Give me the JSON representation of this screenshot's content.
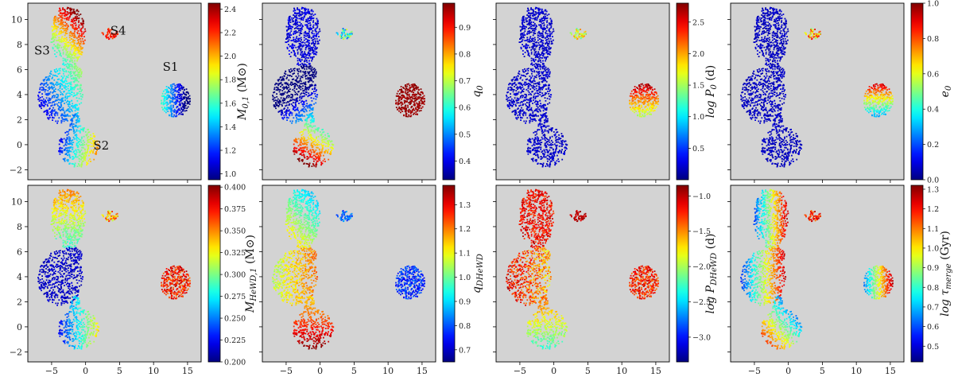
{
  "chart_data": {
    "type": "scatter",
    "description_of_layout": "2 rows x 4 columns of UMAP embedding scatter panels, each colored by a parameter with its own colorbar",
    "shared_axes": {
      "xlim": [
        -8.5,
        17
      ],
      "ylim": [
        -2.8,
        11.3
      ],
      "xticks": [
        -5,
        0,
        5,
        10,
        15
      ],
      "yticks": [
        -2,
        0,
        2,
        4,
        6,
        8,
        10
      ]
    },
    "background_color": "#d3d3d3",
    "colormap": "jet",
    "cluster_labels": [
      {
        "text": "S1",
        "x": 12.5,
        "y": 5.9
      },
      {
        "text": "S2",
        "x": 2.3,
        "y": -0.4
      },
      {
        "text": "S3",
        "x": -6.4,
        "y": 7.2
      },
      {
        "text": "S4",
        "x": 4.8,
        "y": 8.8
      }
    ],
    "clusters": [
      {
        "name": "S3",
        "region": "upper lobe",
        "x_range": [
          -5.5,
          -0.5
        ],
        "y_range": [
          5.5,
          11
        ]
      },
      {
        "name": "S3",
        "region": "middle lobe",
        "x_range": [
          -7,
          -0.5
        ],
        "y_range": [
          1,
          6
        ]
      },
      {
        "name": "S2",
        "region": "bottom lobe",
        "x_range": [
          -4,
          2.5
        ],
        "y_range": [
          -2.2,
          2
        ]
      },
      {
        "name": "S4",
        "region": "small island",
        "x_range": [
          2.5,
          5
        ],
        "y_range": [
          8.3,
          9.3
        ]
      },
      {
        "name": "S1",
        "region": "right blob",
        "x_range": [
          11,
          15.5
        ],
        "y_range": [
          2.3,
          5
        ]
      }
    ],
    "panels": [
      {
        "colorbar_label_main": "M",
        "colorbar_label_sub": "0,1",
        "colorbar_label_unit": "(M⊙)",
        "vmin": 0.95,
        "vmax": 2.45,
        "cb_ticks": [
          "1.0",
          "1.2",
          "1.4",
          "1.6",
          "1.8",
          "2.0",
          "2.2",
          "2.4"
        ],
        "cb_tick_values": [
          1.0,
          1.2,
          1.4,
          1.6,
          1.8,
          2.0,
          2.2,
          2.4
        ],
        "show_cluster_labels": true
      },
      {
        "colorbar_label_main": "q",
        "colorbar_label_sub": "0",
        "colorbar_label_unit": "",
        "vmin": 0.33,
        "vmax": 0.99,
        "cb_ticks": [
          "0.4",
          "0.5",
          "0.6",
          "0.7",
          "0.8",
          "0.9"
        ],
        "cb_tick_values": [
          0.4,
          0.5,
          0.6,
          0.7,
          0.8,
          0.9
        ],
        "show_cluster_labels": false
      },
      {
        "colorbar_label_main": "log P",
        "colorbar_label_sub": "0",
        "colorbar_label_unit": "(d)",
        "vmin": 0.0,
        "vmax": 2.8,
        "cb_ticks": [
          "0.5",
          "1.0",
          "1.5",
          "2.0",
          "2.5"
        ],
        "cb_tick_values": [
          0.5,
          1.0,
          1.5,
          2.0,
          2.5
        ],
        "show_cluster_labels": false
      },
      {
        "colorbar_label_main": "e",
        "colorbar_label_sub": "0",
        "colorbar_label_unit": "",
        "vmin": 0.0,
        "vmax": 1.0,
        "cb_ticks": [
          "0.0",
          "0.2",
          "0.4",
          "0.6",
          "0.8",
          "1.0"
        ],
        "cb_tick_values": [
          0.0,
          0.2,
          0.4,
          0.6,
          0.8,
          1.0
        ],
        "show_cluster_labels": false
      },
      {
        "colorbar_label_main": "M",
        "colorbar_label_sub": "HeWD,1",
        "colorbar_label_unit": "(M⊙)",
        "vmin": 0.2,
        "vmax": 0.402,
        "cb_ticks": [
          "0.200",
          "0.225",
          "0.250",
          "0.275",
          "0.300",
          "0.325",
          "0.350",
          "0.375",
          "0.400"
        ],
        "cb_tick_values": [
          0.2,
          0.225,
          0.25,
          0.275,
          0.3,
          0.325,
          0.35,
          0.375,
          0.4
        ],
        "show_cluster_labels": false
      },
      {
        "colorbar_label_main": "q",
        "colorbar_label_sub": "DHeWD",
        "colorbar_label_unit": "",
        "vmin": 0.65,
        "vmax": 1.38,
        "cb_ticks": [
          "0.7",
          "0.8",
          "0.9",
          "1.0",
          "1.1",
          "1.2",
          "1.3"
        ],
        "cb_tick_values": [
          0.7,
          0.8,
          0.9,
          1.0,
          1.1,
          1.2,
          1.3
        ],
        "show_cluster_labels": false
      },
      {
        "colorbar_label_main": "log P",
        "colorbar_label_sub": "DHeWD",
        "colorbar_label_unit": "(d)",
        "vmin": -3.35,
        "vmax": -0.85,
        "cb_ticks": [
          "-1.0",
          "-1.5",
          "-2.0",
          "-2.5",
          "-3.0"
        ],
        "cb_tick_values": [
          -1.0,
          -1.5,
          -2.0,
          -2.5,
          -3.0
        ],
        "show_cluster_labels": false
      },
      {
        "colorbar_label_main": "log τ",
        "colorbar_label_sub": "merge",
        "colorbar_label_unit": "(Gyr)",
        "vmin": 0.42,
        "vmax": 1.32,
        "cb_ticks": [
          "0.5",
          "0.6",
          "0.7",
          "0.8",
          "0.9",
          "1.0",
          "1.1",
          "1.2",
          "1.3"
        ],
        "cb_tick_values": [
          0.5,
          0.6,
          0.7,
          0.8,
          0.9,
          1.0,
          1.1,
          1.2,
          1.3
        ],
        "show_cluster_labels": false
      }
    ]
  }
}
